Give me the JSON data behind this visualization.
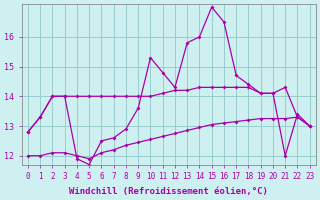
{
  "xlabel": "Windchill (Refroidissement éolien,°C)",
  "background_color": "#cff0f0",
  "grid_color": "#99cccc",
  "line_color": "#aa00aa",
  "xlim_min": -0.5,
  "xlim_max": 23.5,
  "ylim_min": 11.7,
  "ylim_max": 17.1,
  "yticks": [
    12,
    13,
    14,
    15,
    16
  ],
  "xticks": [
    0,
    1,
    2,
    3,
    4,
    5,
    6,
    7,
    8,
    9,
    10,
    11,
    12,
    13,
    14,
    15,
    16,
    17,
    18,
    19,
    20,
    21,
    22,
    23
  ],
  "line_flat_y": [
    12.8,
    13.3,
    14.0,
    14.0,
    14.0,
    14.0,
    14.0,
    14.0,
    14.0,
    14.0,
    14.0,
    14.1,
    14.2,
    14.2,
    14.3,
    14.3,
    14.3,
    14.3,
    14.3,
    14.1,
    14.1,
    14.3,
    13.3,
    13.0
  ],
  "line_spiky_y": [
    12.8,
    13.3,
    14.0,
    14.0,
    11.9,
    11.7,
    12.5,
    12.6,
    12.9,
    13.6,
    15.3,
    14.8,
    14.3,
    15.8,
    16.0,
    17.0,
    16.5,
    14.7,
    14.4,
    14.1,
    14.1,
    12.0,
    13.4,
    13.0
  ],
  "line_low_y": [
    12.0,
    12.0,
    12.1,
    12.1,
    12.0,
    11.9,
    12.1,
    12.2,
    12.35,
    12.45,
    12.55,
    12.65,
    12.75,
    12.85,
    12.95,
    13.05,
    13.1,
    13.15,
    13.2,
    13.25,
    13.25,
    13.25,
    13.3,
    13.0
  ],
  "xlabel_fontsize": 6.5,
  "tick_fontsize": 5.5
}
